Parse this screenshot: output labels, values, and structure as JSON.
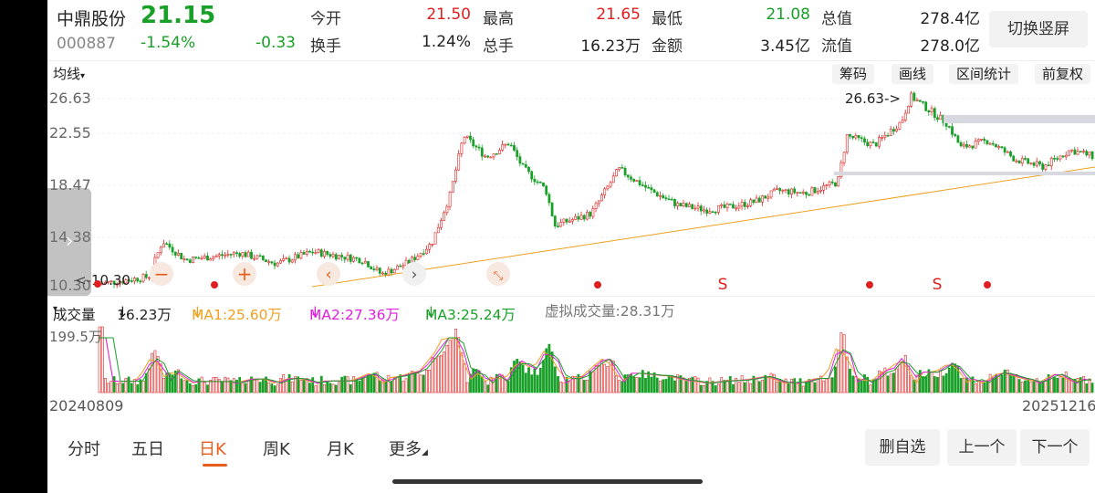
{
  "stock": {
    "name": "中鼎股份",
    "price": "21.15",
    "code": "000887",
    "pct": "-1.54%",
    "change": "-0.33"
  },
  "quote": {
    "row1": [
      {
        "label": "今开",
        "value": "21.50",
        "color": "#e02020"
      },
      {
        "label": "最高",
        "value": "21.65",
        "color": "#e02020"
      },
      {
        "label": "最低",
        "value": "21.08",
        "color": "#19a028"
      },
      {
        "label": "总值",
        "value": "278.4亿",
        "color": "#222222"
      }
    ],
    "row2": [
      {
        "label": "换手",
        "value": "1.24%",
        "color": "#222222"
      },
      {
        "label": "总手",
        "value": "16.23万",
        "color": "#222222"
      },
      {
        "label": "金额",
        "value": "3.45亿",
        "color": "#222222"
      },
      {
        "label": "流值",
        "value": "278.0亿",
        "color": "#222222"
      }
    ]
  },
  "header": {
    "switch_label": "切换竖屏"
  },
  "toolbar": {
    "ma_label": "均线",
    "buttons": [
      "筹码",
      "画线",
      "区间统计",
      "前复权"
    ]
  },
  "chart_data": {
    "type": "candlestick",
    "y_tick_labels": [
      "26.63",
      "22.55",
      "18.47",
      "14.38",
      "10.30"
    ],
    "ylim": [
      10.3,
      26.63
    ],
    "annotations": {
      "max_label": "26.63->",
      "min_label": "<-10.30"
    },
    "signal_markers": [
      "S",
      "S"
    ],
    "tool_icons": [
      "minus-icon",
      "plus-icon",
      "chevron-left-icon",
      "chevron-right-icon",
      "collapse-icon"
    ],
    "x_start": "20240809",
    "x_end": "20251216",
    "colors": {
      "up": "#e02020",
      "down": "#19a028",
      "ma": "#f0a020",
      "ma2": "#e020e0"
    }
  },
  "volume": {
    "label": "成交量",
    "value": "16.23万",
    "ma1": "MA1:25.60万",
    "ma2": "MA2:27.36万",
    "ma3": "MA3:25.24万",
    "virtual": "虚拟成交量:28.31万",
    "max_label": "199.5万"
  },
  "tabs": [
    {
      "label": "分时"
    },
    {
      "label": "五日"
    },
    {
      "label": "日K"
    },
    {
      "label": "周K"
    },
    {
      "label": "月K"
    },
    {
      "label": "更多"
    }
  ],
  "nav_buttons": {
    "delete": "删自选",
    "prev": "上一个",
    "next": "下一个"
  }
}
